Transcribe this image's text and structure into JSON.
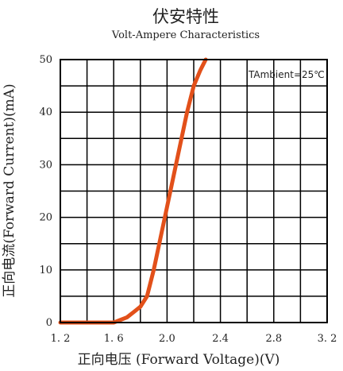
{
  "chart_data": {
    "type": "line",
    "title": "伏安特性",
    "subtitle": "Volt-Ampere Characteristics",
    "xlabel": "正向电压 (Forward Voltage)(V)",
    "ylabel": "正向电流(Forward Current)(mA)",
    "annotation": "TAmbient=25℃",
    "x_tick_labels": [
      "1. 2",
      "1. 6",
      "2.0",
      "2.4",
      "2.8",
      "3. 2"
    ],
    "x_tick_values": [
      1.2,
      1.6,
      2.0,
      2.4,
      2.8,
      3.2
    ],
    "y_tick_labels": [
      "0",
      "10",
      "20",
      "30",
      "40",
      "50"
    ],
    "y_tick_values": [
      0,
      10,
      20,
      30,
      40,
      50
    ],
    "xlim": [
      1.2,
      3.2
    ],
    "ylim": [
      0,
      50
    ],
    "grid": true,
    "series": [
      {
        "color": "#e2501a",
        "x": [
          1.2,
          1.6,
          1.7,
          1.75,
          1.8,
          1.85,
          1.9,
          1.95,
          2.0,
          2.05,
          2.1,
          2.15,
          2.2,
          2.25,
          2.29
        ],
        "y": [
          0,
          0,
          1,
          2,
          3,
          5,
          10,
          16,
          22,
          28,
          34,
          40,
          45,
          48,
          50
        ]
      }
    ]
  }
}
